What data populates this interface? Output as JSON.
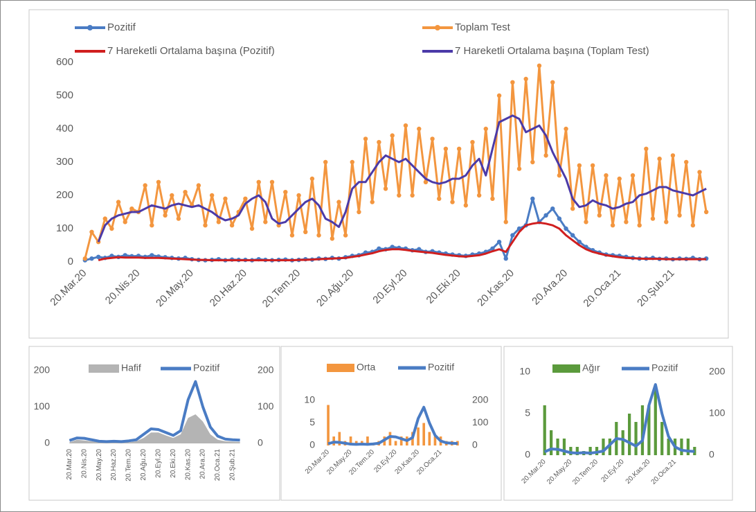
{
  "chart_data": [
    {
      "type": "combo",
      "categories": [
        "20.Mar.20",
        null,
        null,
        null,
        null,
        null,
        null,
        null,
        "20.Nis.20",
        null,
        null,
        null,
        null,
        null,
        null,
        null,
        "20.May.20",
        null,
        null,
        null,
        null,
        null,
        null,
        null,
        "20.Haz.20",
        null,
        null,
        null,
        null,
        null,
        null,
        null,
        "20.Tem.20",
        null,
        null,
        null,
        null,
        null,
        null,
        null,
        "20.Ağu.20",
        null,
        null,
        null,
        null,
        null,
        null,
        null,
        "20.Eyl.20",
        null,
        null,
        null,
        null,
        null,
        null,
        null,
        "20.Eki.20",
        null,
        null,
        null,
        null,
        null,
        null,
        null,
        "20.Kas.20",
        null,
        null,
        null,
        null,
        null,
        null,
        null,
        "20.Ara.20",
        null,
        null,
        null,
        null,
        null,
        null,
        null,
        "20.Oca.21",
        null,
        null,
        null,
        null,
        null,
        null,
        null,
        "20.Şub.21",
        null,
        null,
        null,
        null,
        null
      ],
      "ylim": [
        0,
        600
      ],
      "yticks": [
        0,
        100,
        200,
        300,
        400,
        500,
        600
      ],
      "series": [
        {
          "name": "Pozitif",
          "type": "line",
          "markers": true,
          "color": "#4a7cc4",
          "values": [
            5,
            10,
            15,
            12,
            18,
            15,
            20,
            17,
            18,
            15,
            20,
            16,
            14,
            12,
            10,
            12,
            8,
            6,
            5,
            6,
            8,
            5,
            7,
            6,
            6,
            5,
            8,
            6,
            5,
            6,
            7,
            5,
            6,
            8,
            7,
            10,
            9,
            12,
            10,
            14,
            18,
            20,
            28,
            30,
            40,
            38,
            45,
            42,
            40,
            35,
            38,
            30,
            32,
            28,
            25,
            22,
            20,
            18,
            22,
            25,
            30,
            40,
            60,
            10,
            80,
            100,
            110,
            190,
            120,
            140,
            160,
            130,
            100,
            80,
            60,
            45,
            35,
            28,
            22,
            20,
            18,
            15,
            12,
            10,
            10,
            12,
            9,
            10,
            8,
            10,
            9,
            12,
            8,
            10
          ]
        },
        {
          "name": "Toplam Test",
          "type": "line",
          "markers": true,
          "color": "#f3963f",
          "values": [
            10,
            90,
            60,
            130,
            100,
            180,
            120,
            160,
            150,
            230,
            110,
            240,
            140,
            200,
            130,
            210,
            170,
            230,
            110,
            200,
            120,
            190,
            110,
            150,
            190,
            100,
            240,
            120,
            240,
            110,
            210,
            80,
            200,
            90,
            250,
            80,
            300,
            70,
            180,
            80,
            300,
            150,
            370,
            180,
            360,
            220,
            380,
            200,
            410,
            200,
            400,
            240,
            370,
            190,
            340,
            180,
            340,
            170,
            360,
            200,
            400,
            190,
            500,
            120,
            540,
            280,
            550,
            300,
            590,
            320,
            540,
            260,
            400,
            160,
            290,
            120,
            290,
            140,
            260,
            110,
            250,
            120,
            260,
            110,
            340,
            130,
            310,
            120,
            320,
            140,
            300,
            110,
            270,
            150
          ]
        },
        {
          "name": "7 Hareketli Ortalama başına (Pozitif)",
          "type": "line",
          "markers": false,
          "color": "#d01f1f",
          "values": [
            null,
            null,
            5,
            10,
            12,
            14,
            13,
            13,
            13,
            12,
            12,
            12,
            11,
            10,
            9,
            8,
            7,
            6,
            6,
            5,
            5,
            5,
            5,
            5,
            5,
            5,
            5,
            5,
            5,
            5,
            5,
            5,
            6,
            6,
            7,
            8,
            9,
            10,
            11,
            12,
            15,
            18,
            22,
            26,
            32,
            36,
            38,
            38,
            36,
            33,
            31,
            29,
            27,
            24,
            21,
            19,
            17,
            16,
            18,
            20,
            25,
            32,
            38,
            30,
            60,
            90,
            110,
            115,
            118,
            115,
            110,
            100,
            80,
            65,
            50,
            38,
            30,
            25,
            20,
            17,
            14,
            12,
            11,
            10,
            9,
            9,
            9,
            8,
            8,
            8,
            8,
            8,
            8,
            8
          ]
        },
        {
          "name": "7 Hareketli Ortalama başına (Toplam Test)",
          "type": "line",
          "markers": false,
          "color": "#4b3aa8",
          "values": [
            null,
            null,
            60,
            110,
            130,
            140,
            145,
            150,
            150,
            160,
            170,
            165,
            160,
            170,
            175,
            170,
            165,
            170,
            160,
            150,
            135,
            125,
            130,
            140,
            175,
            190,
            200,
            180,
            130,
            115,
            120,
            140,
            160,
            180,
            190,
            170,
            130,
            120,
            105,
            150,
            220,
            240,
            240,
            270,
            300,
            320,
            310,
            300,
            310,
            290,
            270,
            250,
            240,
            235,
            240,
            250,
            250,
            260,
            290,
            310,
            260,
            340,
            420,
            430,
            440,
            430,
            390,
            400,
            410,
            380,
            330,
            290,
            250,
            190,
            165,
            170,
            185,
            175,
            170,
            160,
            165,
            175,
            180,
            200,
            205,
            215,
            225,
            225,
            215,
            210,
            205,
            200,
            210,
            220
          ]
        }
      ]
    },
    {
      "type": "combo",
      "categories": [
        "20.Mar.20",
        null,
        "20.Nis.20",
        null,
        "20.May.20",
        null,
        "20.Haz.20",
        null,
        "20.Tem.20",
        null,
        "20.Ağu.20",
        null,
        "20.Eyl.20",
        null,
        "20.Eki.20",
        null,
        "20.Kas.20",
        null,
        "20.Ara.20",
        null,
        "20.Oca.21",
        null,
        "20.Şub.21",
        null
      ],
      "ylim": [
        0,
        200
      ],
      "yticks": [
        0,
        100,
        200
      ],
      "y2lim": [
        0,
        200
      ],
      "y2ticks": [
        0,
        100,
        200
      ],
      "series": [
        {
          "name": "Hafif",
          "type": "area",
          "color": "#b4b4b4",
          "values": [
            3,
            10,
            8,
            6,
            3,
            2,
            2,
            2,
            3,
            6,
            15,
            30,
            30,
            22,
            15,
            25,
            70,
            80,
            60,
            25,
            10,
            6,
            5,
            4
          ]
        },
        {
          "name": "Pozitif",
          "type": "line",
          "axis": "y2",
          "color": "#4a7cc4",
          "values": [
            8,
            15,
            14,
            10,
            6,
            5,
            6,
            5,
            7,
            10,
            25,
            40,
            38,
            30,
            22,
            35,
            120,
            170,
            100,
            45,
            20,
            12,
            10,
            9
          ]
        }
      ]
    },
    {
      "type": "combo",
      "categories": [
        "20.Mar.20",
        null,
        null,
        null,
        "20.May.20",
        null,
        null,
        null,
        "20.Tem.20",
        null,
        null,
        null,
        "20.Eyl.20",
        null,
        null,
        null,
        "20.Kas.20",
        null,
        null,
        null,
        "20.Oca.21",
        null,
        null,
        null
      ],
      "ylim": [
        0,
        10
      ],
      "yticks": [
        0,
        5,
        10
      ],
      "y2lim": [
        0,
        200
      ],
      "y2ticks": [
        0,
        100,
        200
      ],
      "series": [
        {
          "name": "Orta",
          "type": "bar",
          "color": "#f3963f",
          "values": [
            9,
            2,
            3,
            1,
            2,
            1,
            1,
            2,
            0.5,
            1,
            2,
            3,
            1,
            2,
            2,
            3,
            4,
            5,
            3,
            2,
            2,
            1,
            1,
            1
          ]
        },
        {
          "name": "Pozitif",
          "type": "line",
          "axis": "y2",
          "color": "#4a7cc4",
          "values": [
            8,
            15,
            14,
            10,
            6,
            5,
            6,
            5,
            7,
            10,
            25,
            40,
            38,
            30,
            22,
            35,
            120,
            170,
            100,
            45,
            20,
            12,
            10,
            9
          ]
        }
      ]
    },
    {
      "type": "combo",
      "categories": [
        "20.Mar.20",
        null,
        null,
        null,
        "20.May.20",
        null,
        null,
        null,
        "20.Tem.20",
        null,
        null,
        null,
        "20.Eyl.20",
        null,
        null,
        null,
        "20.Kas.20",
        null,
        null,
        null,
        "20.Oca.21",
        null,
        null,
        null
      ],
      "ylim": [
        0,
        10
      ],
      "yticks": [
        0,
        5,
        10
      ],
      "y2lim": [
        0,
        200
      ],
      "y2ticks": [
        0,
        100,
        200
      ],
      "series": [
        {
          "name": "Ağır",
          "type": "bar",
          "color": "#5b9a3c",
          "values": [
            6,
            3,
            2,
            2,
            1,
            1,
            0.5,
            1,
            1,
            2,
            2,
            4,
            3,
            5,
            4,
            6,
            6,
            8,
            4,
            2,
            2,
            2,
            2,
            1
          ]
        },
        {
          "name": "Pozitif",
          "type": "line",
          "axis": "y2",
          "color": "#4a7cc4",
          "values": [
            8,
            15,
            14,
            10,
            6,
            5,
            6,
            5,
            7,
            10,
            25,
            40,
            38,
            30,
            22,
            35,
            120,
            170,
            100,
            45,
            20,
            12,
            10,
            9
          ]
        }
      ]
    }
  ]
}
